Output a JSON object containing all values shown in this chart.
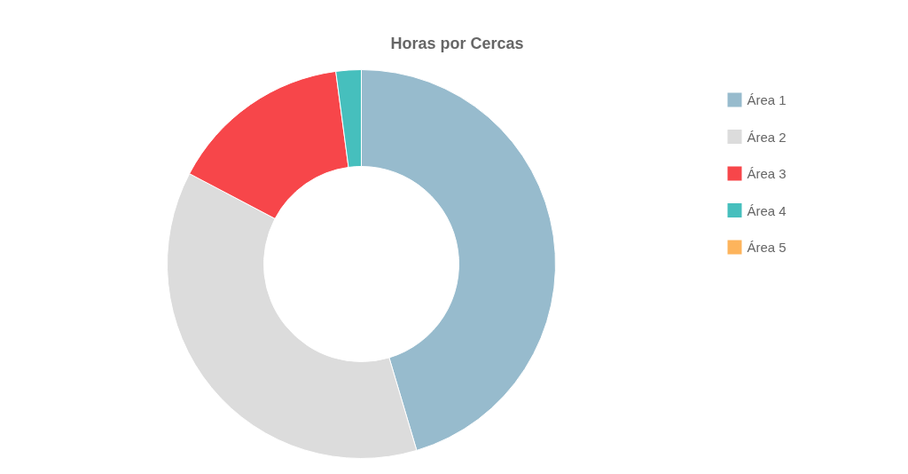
{
  "chart_data": {
    "type": "donut",
    "title": "Horas por Cercas",
    "categories": [
      "Área 1",
      "Área 2",
      "Área 3",
      "Área 4",
      "Área 5"
    ],
    "values": [
      45.4,
      37.3,
      15.2,
      2.1,
      0
    ],
    "colors": [
      "#97bbcd",
      "#dcdcdc",
      "#f7464a",
      "#46bfbd",
      "#fdb45c"
    ],
    "legend": "top right"
  }
}
